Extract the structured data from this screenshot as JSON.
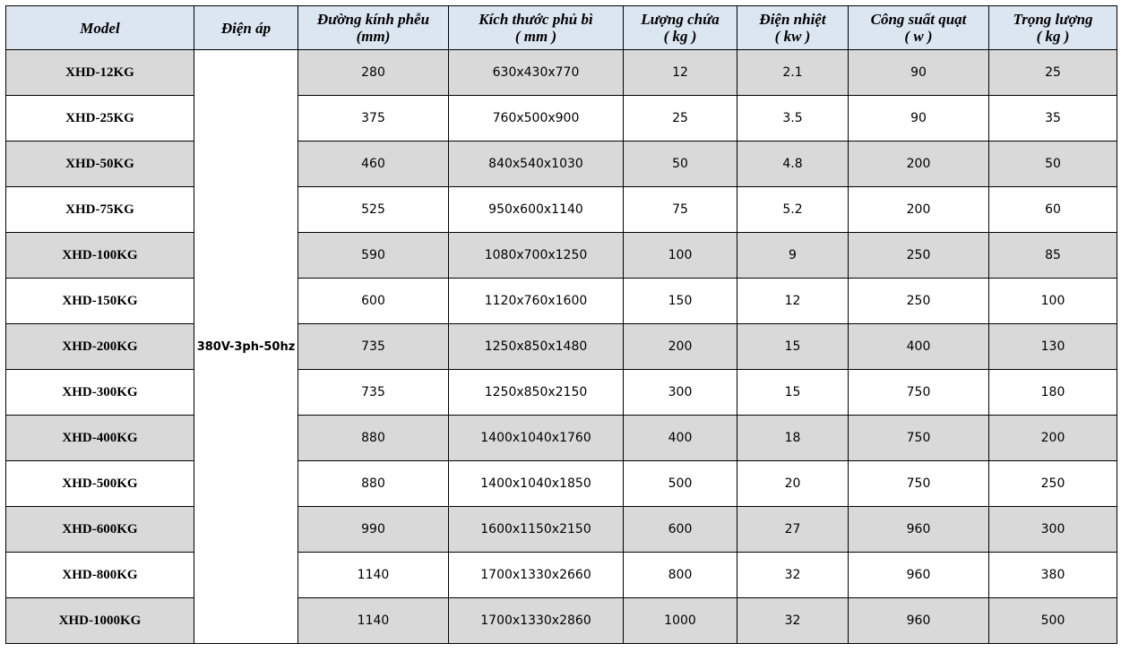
{
  "table": {
    "header": [
      [
        "Model"
      ],
      [
        "Điện áp"
      ],
      [
        "Đường kính phễu",
        "(mm)"
      ],
      [
        "Kích thước phủ bì",
        "( mm )"
      ],
      [
        "Lượng chứa",
        "( kg )"
      ],
      [
        "Điện nhiệt",
        "( kw )"
      ],
      [
        "Công suất quạt",
        "( w )"
      ],
      [
        "Trọng lượng",
        "( kg )"
      ]
    ],
    "voltage": "380V-3ph-50hz",
    "rows": [
      [
        "XHD-12KG",
        280,
        "630x430x770",
        12,
        2.1,
        90,
        25
      ],
      [
        "XHD-25KG",
        375,
        "760x500x900",
        25,
        3.5,
        90,
        35
      ],
      [
        "XHD-50KG",
        460,
        "840x540x1030",
        50,
        4.8,
        200,
        50
      ],
      [
        "XHD-75KG",
        525,
        "950x600x1140",
        75,
        5.2,
        200,
        60
      ],
      [
        "XHD-100KG",
        590,
        "1080x700x1250",
        100,
        9,
        250,
        85
      ],
      [
        "XHD-150KG",
        600,
        "1120x760x1600",
        150,
        12,
        250,
        100
      ],
      [
        "XHD-200KG",
        735,
        "1250x850x1480",
        200,
        15,
        400,
        130
      ],
      [
        "XHD-300KG",
        735,
        "1250x850x2150",
        300,
        15,
        750,
        180
      ],
      [
        "XHD-400KG",
        880,
        "1400x1040x1760",
        400,
        18,
        750,
        200
      ],
      [
        "XHD-500KG",
        880,
        "1400x1040x1850",
        500,
        20,
        750,
        250
      ],
      [
        "XHD-600KG",
        990,
        "1600x1150x2150",
        600,
        27,
        960,
        300
      ],
      [
        "XHD-800KG",
        1140,
        "1700x1330x2660",
        800,
        32,
        960,
        380
      ],
      [
        "XHD-1000KG",
        1140,
        "1700x1330x2860",
        1000,
        32,
        960,
        500
      ]
    ]
  }
}
